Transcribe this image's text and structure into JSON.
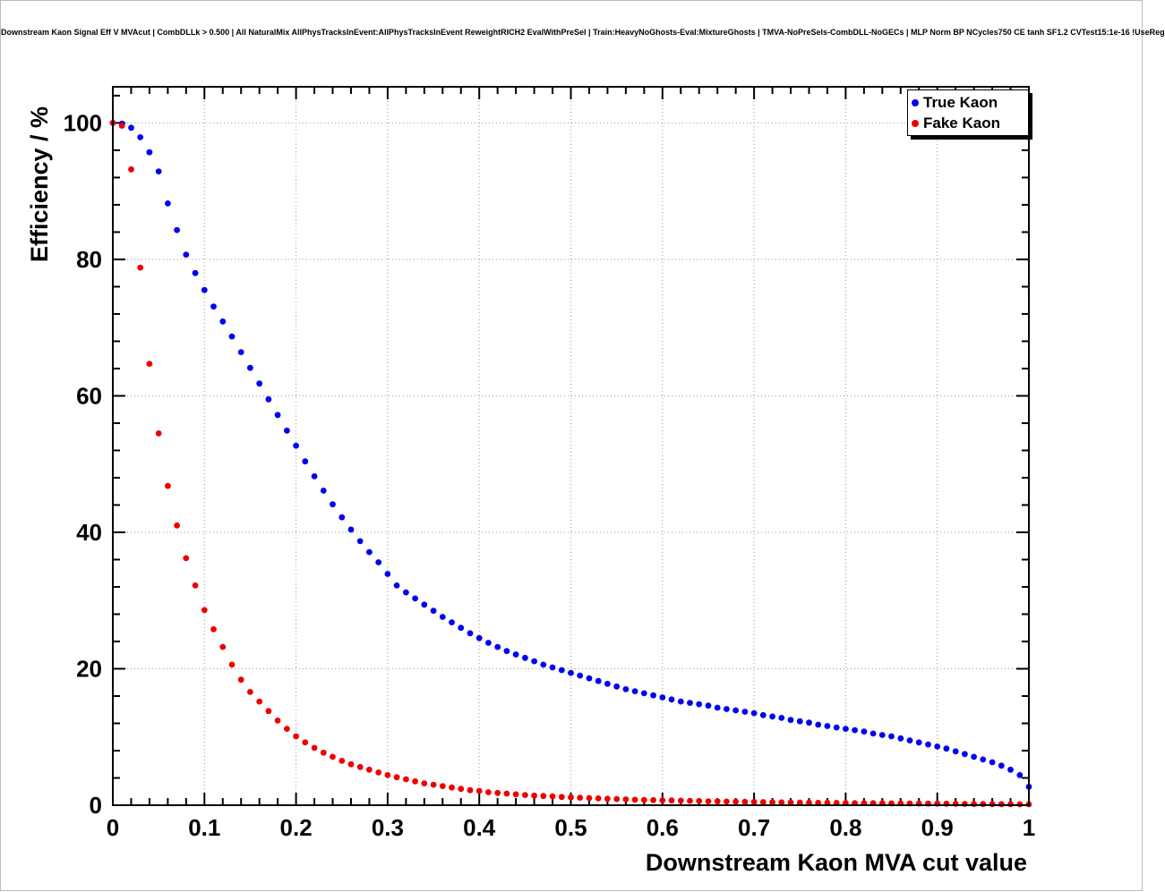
{
  "chart_data": {
    "type": "scatter",
    "title": "Downstream Kaon Signal Eff V MVAcut | CombDLLk > 0.500 | All NaturalMix AllPhysTracksInEvent:AllPhysTracksInEvent ReweightRICH2 EvalWithPreSel | Train:HeavyNoGhosts-Eval:MixtureGhosts | TMVA-NoPreSels-CombDLL-NoGECs | MLP Norm BP NCycles750 CE tanh SF1.2 CVTest15:1e-16 !UseReg",
    "xlabel": "Downstream Kaon MVA cut value",
    "ylabel": "Efficiency / %",
    "xlim": [
      0,
      1
    ],
    "ylim": [
      0,
      105.3
    ],
    "grid": true,
    "grid_color": "#9a9a9a",
    "legend_position": "top-right",
    "x_tick_values": [
      0,
      0.1,
      0.2,
      0.3,
      0.4,
      0.5,
      0.6,
      0.7,
      0.8,
      0.9,
      1
    ],
    "x_tick_labels": [
      "0",
      "0.1",
      "0.2",
      "0.3",
      "0.4",
      "0.5",
      "0.6",
      "0.7",
      "0.8",
      "0.9",
      "1"
    ],
    "y_tick_values": [
      0,
      20,
      40,
      60,
      80,
      100
    ],
    "y_tick_labels": [
      "0",
      "20",
      "40",
      "60",
      "80",
      "100"
    ],
    "x_minor_step": 0.02,
    "y_minor_step": 4,
    "x_start": 0,
    "x_step": 0.01,
    "series": [
      {
        "name": "True Kaon",
        "color": "#0000ee",
        "values": [
          100.0,
          99.9,
          99.3,
          97.9,
          95.7,
          92.9,
          88.2,
          84.3,
          80.7,
          78.0,
          75.5,
          73.1,
          70.9,
          68.7,
          66.4,
          64.1,
          61.8,
          59.5,
          57.2,
          54.9,
          52.7,
          50.4,
          48.2,
          46.1,
          44.1,
          42.2,
          40.4,
          38.7,
          37.1,
          35.6,
          33.9,
          32.2,
          31.2,
          30.3,
          29.4,
          28.5,
          27.6,
          26.8,
          26.0,
          25.2,
          24.5,
          23.8,
          23.2,
          22.6,
          22.1,
          21.6,
          21.1,
          20.6,
          20.2,
          19.8,
          19.4,
          19.0,
          18.6,
          18.2,
          17.8,
          17.4,
          17.0,
          16.7,
          16.4,
          16.1,
          15.8,
          15.5,
          15.2,
          15.0,
          14.8,
          14.6,
          14.3,
          14.1,
          13.9,
          13.7,
          13.5,
          13.2,
          13.0,
          12.8,
          12.5,
          12.3,
          12.1,
          11.8,
          11.6,
          11.4,
          11.2,
          11.0,
          10.8,
          10.5,
          10.3,
          10.1,
          9.8,
          9.5,
          9.2,
          8.9,
          8.6,
          8.3,
          7.9,
          7.5,
          7.1,
          6.7,
          6.3,
          5.8,
          5.2,
          4.4,
          2.7
        ]
      },
      {
        "name": "Fake Kaon",
        "color": "#ee0000",
        "values": [
          100.0,
          99.6,
          93.2,
          78.8,
          64.7,
          54.5,
          46.8,
          41.0,
          36.2,
          32.2,
          28.6,
          25.8,
          23.2,
          20.6,
          18.4,
          16.6,
          15.2,
          13.8,
          12.4,
          11.2,
          10.1,
          9.2,
          8.4,
          7.7,
          7.1,
          6.5,
          6.0,
          5.6,
          5.2,
          4.8,
          4.4,
          4.1,
          3.8,
          3.5,
          3.2,
          3.0,
          2.8,
          2.6,
          2.4,
          2.2,
          2.1,
          1.9,
          1.8,
          1.7,
          1.6,
          1.5,
          1.4,
          1.35,
          1.3,
          1.2,
          1.15,
          1.1,
          1.05,
          1.0,
          0.95,
          0.9,
          0.85,
          0.8,
          0.78,
          0.75,
          0.72,
          0.7,
          0.67,
          0.64,
          0.61,
          0.58,
          0.56,
          0.54,
          0.52,
          0.5,
          0.48,
          0.46,
          0.44,
          0.42,
          0.41,
          0.39,
          0.38,
          0.36,
          0.35,
          0.34,
          0.33,
          0.32,
          0.31,
          0.3,
          0.29,
          0.28,
          0.27,
          0.26,
          0.25,
          0.24,
          0.23,
          0.22,
          0.21,
          0.2,
          0.19,
          0.18,
          0.17,
          0.16,
          0.15,
          0.14,
          0.13
        ]
      }
    ]
  }
}
